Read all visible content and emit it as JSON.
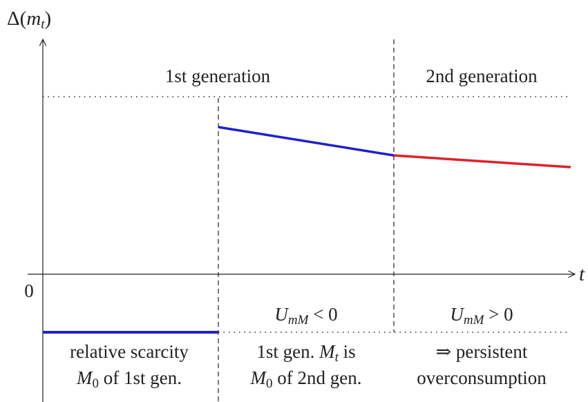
{
  "axes": {
    "y_label": [
      {
        "t": "Δ("
      },
      {
        "t": "m",
        "math": true
      },
      {
        "t": "t",
        "math": true,
        "sub": true
      },
      {
        "t": ")"
      }
    ],
    "x_label": [
      {
        "t": "t",
        "math": true
      }
    ],
    "origin": [
      {
        "t": "0"
      }
    ]
  },
  "headers": [
    {
      "parts": [
        {
          "t": "1st generation"
        }
      ],
      "color": "#1f1fd0"
    },
    {
      "parts": [
        {
          "t": "2nd generation"
        }
      ],
      "color": "#e0202a"
    }
  ],
  "conditions": [
    [
      {
        "t": "U",
        "math": true
      },
      {
        "t": "mM",
        "math": true,
        "sub": true
      },
      {
        "t": " < 0"
      }
    ],
    [
      {
        "t": "U",
        "math": true
      },
      {
        "t": "mM",
        "math": true,
        "sub": true
      },
      {
        "t": " > 0"
      }
    ]
  ],
  "captions": [
    [
      [
        {
          "t": "relative scarcity"
        }
      ],
      [
        {
          "t": "M",
          "math": true
        },
        {
          "t": "0",
          "sub": true
        },
        {
          "t": " of 1st gen."
        }
      ]
    ],
    [
      [
        {
          "t": "1st gen. "
        },
        {
          "t": "M",
          "math": true
        },
        {
          "t": "t",
          "math": true,
          "sub": true
        },
        {
          "t": " is"
        }
      ],
      [
        {
          "t": "M",
          "math": true
        },
        {
          "t": "0",
          "sub": true
        },
        {
          "t": " of 2nd gen."
        }
      ]
    ],
    [
      [
        {
          "t": "⇒ persistent"
        }
      ],
      [
        {
          "t": "overconsumption"
        }
      ]
    ]
  ]
}
